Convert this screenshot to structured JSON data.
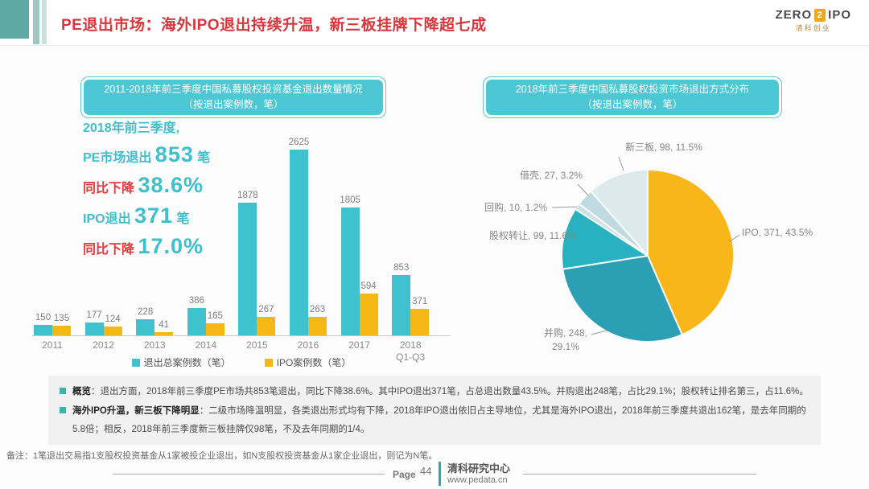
{
  "header": {
    "title": "PE退出市场：海外IPO退出持续升温，新三板挂牌下降超七成",
    "logo": {
      "zero": "ZERO",
      "two": "2",
      "ipo": "IPO",
      "sub": "清科创业"
    }
  },
  "left_chart": {
    "title_line1": "2011-2018年前三季度中国私募股权投资基金退出数量情况",
    "title_line2": "（按退出案例数，笔）",
    "annotation": {
      "line1": "2018年前三季度,",
      "pe_label": "PE市场退出 ",
      "pe_value": "853",
      "pe_unit": " 笔",
      "down1_label": "同比下降 ",
      "down1_value": "38.6%",
      "ipo_label": "IPO退出 ",
      "ipo_value": "371",
      "ipo_unit": " 笔",
      "down2_label": "同比下降 ",
      "down2_value": "17.0%"
    }
  },
  "right_chart": {
    "title_line1": "2018年前三季度中国私募股权投资市场退出方式分布",
    "title_line2": "（按退出案例数，笔）"
  },
  "chart_data": [
    {
      "type": "bar",
      "title": "2011-2018年前三季度中国私募股权投资基金退出数量情况（按退出案例数，笔）",
      "categories": [
        "2011",
        "2012",
        "2013",
        "2014",
        "2015",
        "2016",
        "2017",
        "2018 Q1-Q3"
      ],
      "series": [
        {
          "name": "退出总案例数（笔）",
          "color": "#40C2CE",
          "values": [
            150,
            177,
            228,
            386,
            1878,
            2625,
            1805,
            853
          ]
        },
        {
          "name": "IPO案例数（笔）",
          "color": "#F5B715",
          "values": [
            135,
            124,
            41,
            165,
            267,
            263,
            594,
            371
          ]
        }
      ],
      "ylim": [
        0,
        2625
      ],
      "grid": false,
      "value_labels": true,
      "legend_position": "bottom"
    },
    {
      "type": "pie",
      "title": "2018年前三季度中国私募股权投资市场退出方式分布（按退出案例数，笔）",
      "slices": [
        {
          "name": "IPO",
          "value": 371,
          "pct": 43.5,
          "color": "#F8B619"
        },
        {
          "name": "并购",
          "value": 248,
          "pct": 29.1,
          "color": "#2B9FB4"
        },
        {
          "name": "股权转让",
          "value": 99,
          "pct": 11.6,
          "color": "#28B1C0"
        },
        {
          "name": "回购",
          "value": 10,
          "pct": 1.2,
          "color": "#CBE0E5"
        },
        {
          "name": "借壳",
          "value": 27,
          "pct": 3.2,
          "color": "#BFDAE0"
        },
        {
          "name": "新三板",
          "value": 98,
          "pct": 11.5,
          "color": "#DCEAEE"
        }
      ],
      "start_angle_deg": 0,
      "clockwise": true,
      "labels_outside": true
    }
  ],
  "summary": {
    "items": [
      {
        "lead": "概览",
        "rest": "：退出方面，2018年前三季度PE市场共853笔退出，同比下降38.6%。其中IPO退出371笔，占总退出数量43.5%。并购退出248笔，占比29.1%；股权转让排名第三，占11.6%。"
      },
      {
        "lead": "海外IPO升温，新三板下降明显",
        "rest": "：二级市场降温明显，各类退出形式均有下降，2018年IPO退出依旧占主导地位，尤其是海外IPO退出，2018年前三季度共退出162笔，是去年同期的5.8倍；相反，2018年前三季度新三板挂牌仅98笔，不及去年同期的1/4。"
      }
    ]
  },
  "footer": {
    "note": "备注：1笔退出交易指1支股权投资基金从1家被投企业退出，如N支股权投资基金从1家企业退出，则记为N笔。",
    "page_label": "Page",
    "page_number": "44",
    "org": "清科研究中心",
    "url": "www.pedata.cn"
  },
  "colors": {
    "title_red": "#D9363B",
    "accent_teal": "#4CC7D3",
    "bar_teal": "#40C2CE",
    "bar_yellow": "#F5B715",
    "deco_teal": "#5DA9A4",
    "footer_teal": "#2FA8A5"
  }
}
